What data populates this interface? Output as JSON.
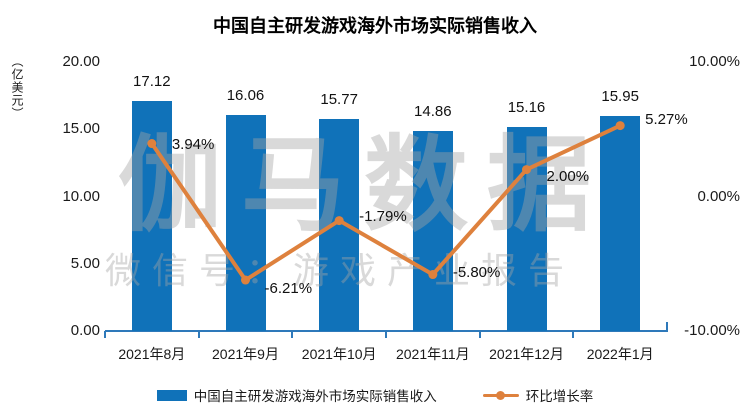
{
  "title": "中国自主研发游戏海外市场实际销售收入",
  "watermark": {
    "brand": "伽马数据",
    "wechat": "微信号：游戏产业报告"
  },
  "axes": {
    "left": {
      "unit": "（亿美元）",
      "range": [
        0,
        20
      ],
      "ticks": [
        {
          "v": 20,
          "label": "20.00"
        },
        {
          "v": 15,
          "label": "15.00"
        },
        {
          "v": 10,
          "label": "10.00"
        },
        {
          "v": 5,
          "label": "5.00"
        },
        {
          "v": 0,
          "label": "0.00"
        }
      ]
    },
    "right": {
      "range": [
        -10,
        10
      ],
      "ticks": [
        {
          "v": 10,
          "label": "10.00%"
        },
        {
          "v": 0,
          "label": "0.00%"
        },
        {
          "v": -10,
          "label": "-10.00%"
        }
      ]
    }
  },
  "legend": {
    "bars": "中国自主研发游戏海外市场实际销售收入",
    "line": "环比增长率"
  },
  "colors": {
    "bar": "#1072B9",
    "line": "#DE813D",
    "axis": "#2E79BA",
    "watermark": "rgba(165,165,165,0.42)"
  },
  "chart_data": {
    "type": "combo",
    "title": "中国自主研发游戏海外市场实际销售收入",
    "categories": [
      "2021年8月",
      "2021年9月",
      "2021年10月",
      "2021年11月",
      "2021年12月",
      "2022年1月"
    ],
    "series": [
      {
        "name": "中国自主研发游戏海外市场实际销售收入",
        "type": "bar",
        "axis": "left",
        "values": [
          17.12,
          16.06,
          15.77,
          14.86,
          15.16,
          15.95
        ],
        "labels": [
          "17.12",
          "16.06",
          "15.77",
          "14.86",
          "15.16",
          "15.95"
        ]
      },
      {
        "name": "环比增长率",
        "type": "line",
        "axis": "right",
        "values": [
          3.94,
          -6.21,
          -1.79,
          -5.8,
          2.0,
          5.27
        ],
        "labels": [
          "3.94%",
          "-6.21%",
          "-1.79%",
          "-5.80%",
          "2.00%",
          "5.27%"
        ]
      }
    ],
    "ylabel_left": "（亿美元）",
    "left_range": [
      0,
      20
    ],
    "right_range": [
      -10,
      10
    ],
    "grid": false,
    "legend_position": "bottom"
  }
}
